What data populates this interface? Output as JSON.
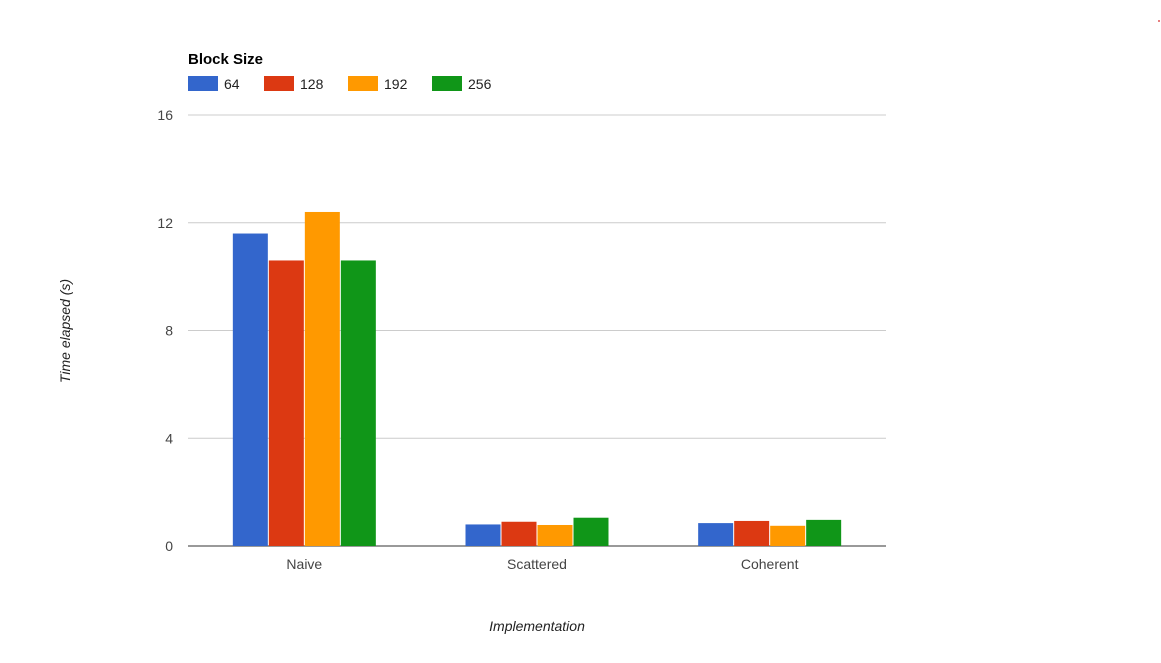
{
  "chart_data": {
    "type": "bar",
    "title": "",
    "legend_title": "Block Size",
    "legend_position": "top-left",
    "xlabel": "Implementation",
    "ylabel": "Time elapsed (s)",
    "categories": [
      "Naive",
      "Scattered",
      "Coherent"
    ],
    "ylim": [
      0,
      16
    ],
    "yticks": [
      0,
      4,
      8,
      12,
      16
    ],
    "grid": true,
    "series": [
      {
        "name": "64",
        "color": "#3366cc",
        "values": [
          11.6,
          0.8,
          0.85
        ]
      },
      {
        "name": "128",
        "color": "#dc3912",
        "values": [
          10.6,
          0.9,
          0.93
        ]
      },
      {
        "name": "192",
        "color": "#ff9900",
        "values": [
          12.4,
          0.78,
          0.75
        ]
      },
      {
        "name": "256",
        "color": "#109618",
        "values": [
          10.6,
          1.05,
          0.97
        ]
      }
    ]
  }
}
